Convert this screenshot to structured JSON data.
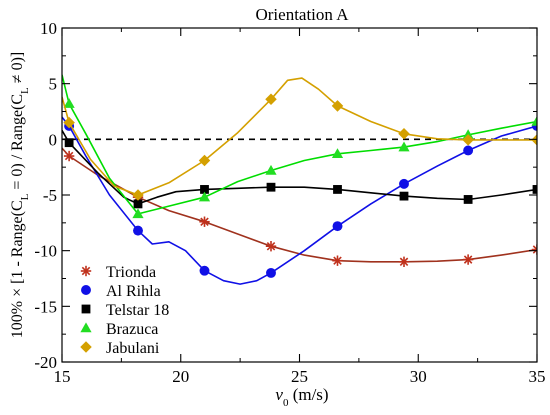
{
  "chart_data": {
    "type": "line",
    "title": "Orientation A",
    "xlabel_base": "v",
    "xlabel_sub": "0",
    "xlabel_unit": " (m/s)",
    "ylabel_lines": [
      "100% × [1 - Range(C",
      " = 0) / Range(C",
      " ≠ 0)]"
    ],
    "ylabel_subscript": "L",
    "xlim": [
      15,
      35
    ],
    "ylim": [
      -20,
      10
    ],
    "xticks": [
      "15",
      "20",
      "25",
      "30",
      "35"
    ],
    "yticks": [
      "10",
      "5",
      "0",
      "-5",
      "-10",
      "-15",
      "-20"
    ],
    "legend_position": "lower-left",
    "reference_line": {
      "y": 0,
      "style": "dashed"
    },
    "series": [
      {
        "name": "Trionda",
        "color": "#a0321e",
        "marker": "asterisk",
        "marker_color": "#c0311c",
        "points": [
          [
            15.3,
            -1.5
          ],
          [
            18.2,
            -5.2
          ],
          [
            21.0,
            -7.4
          ],
          [
            23.8,
            -9.6
          ],
          [
            26.6,
            -10.9
          ],
          [
            29.4,
            -11.0
          ],
          [
            32.1,
            -10.8
          ],
          [
            35.0,
            -9.9
          ]
        ],
        "curve": [
          [
            15.0,
            -0.8
          ],
          [
            15.3,
            -1.5
          ],
          [
            16.5,
            -3.2
          ],
          [
            18.2,
            -5.2
          ],
          [
            19.5,
            -6.4
          ],
          [
            21.0,
            -7.4
          ],
          [
            22.4,
            -8.5
          ],
          [
            23.8,
            -9.6
          ],
          [
            25.2,
            -10.4
          ],
          [
            26.6,
            -10.9
          ],
          [
            28.0,
            -11.0
          ],
          [
            29.4,
            -11.0
          ],
          [
            30.8,
            -10.95
          ],
          [
            32.1,
            -10.8
          ],
          [
            33.5,
            -10.4
          ],
          [
            35.0,
            -9.9
          ]
        ]
      },
      {
        "name": "Al Rihla",
        "color": "#1010e6",
        "marker": "circle",
        "marker_color": "#1010e6",
        "points": [
          [
            15.3,
            1.2
          ],
          [
            18.2,
            -8.2
          ],
          [
            21.0,
            -11.8
          ],
          [
            23.8,
            -12.0
          ],
          [
            26.6,
            -7.8
          ],
          [
            29.4,
            -4.0
          ],
          [
            32.1,
            -1.0
          ],
          [
            35.0,
            1.2
          ]
        ],
        "curve": [
          [
            15.0,
            2.0
          ],
          [
            15.3,
            1.2
          ],
          [
            16.0,
            -1.5
          ],
          [
            17.0,
            -5.0
          ],
          [
            18.2,
            -8.2
          ],
          [
            18.8,
            -9.4
          ],
          [
            19.5,
            -9.2
          ],
          [
            20.2,
            -10.0
          ],
          [
            21.0,
            -11.8
          ],
          [
            21.8,
            -12.7
          ],
          [
            22.5,
            -13.0
          ],
          [
            23.2,
            -12.7
          ],
          [
            23.8,
            -12.0
          ],
          [
            25.2,
            -10.0
          ],
          [
            26.6,
            -7.8
          ],
          [
            28.0,
            -5.8
          ],
          [
            29.4,
            -4.0
          ],
          [
            30.8,
            -2.4
          ],
          [
            32.1,
            -1.0
          ],
          [
            33.5,
            0.3
          ],
          [
            35.0,
            1.2
          ]
        ]
      },
      {
        "name": "Telstar 18",
        "color": "#000000",
        "marker": "square",
        "marker_color": "#000000",
        "points": [
          [
            15.3,
            -0.3
          ],
          [
            18.2,
            -5.8
          ],
          [
            21.0,
            -4.5
          ],
          [
            23.8,
            -4.3
          ],
          [
            26.6,
            -4.5
          ],
          [
            29.4,
            -5.1
          ],
          [
            32.1,
            -5.4
          ],
          [
            35.0,
            -4.5
          ]
        ],
        "curve": [
          [
            15.0,
            0.8
          ],
          [
            15.3,
            -0.3
          ],
          [
            16.5,
            -3.0
          ],
          [
            17.6,
            -5.2
          ],
          [
            18.2,
            -5.8
          ],
          [
            19.0,
            -5.2
          ],
          [
            19.8,
            -4.7
          ],
          [
            21.0,
            -4.5
          ],
          [
            22.4,
            -4.4
          ],
          [
            23.8,
            -4.3
          ],
          [
            25.2,
            -4.3
          ],
          [
            26.6,
            -4.5
          ],
          [
            28.0,
            -4.8
          ],
          [
            29.4,
            -5.1
          ],
          [
            30.8,
            -5.3
          ],
          [
            32.1,
            -5.4
          ],
          [
            33.5,
            -5.0
          ],
          [
            35.0,
            -4.5
          ]
        ]
      },
      {
        "name": "Brazuca",
        "color": "#00dd00",
        "marker": "triangle",
        "marker_color": "#22dd22",
        "points": [
          [
            15.3,
            3.2
          ],
          [
            18.2,
            -6.7
          ],
          [
            21.0,
            -5.2
          ],
          [
            23.8,
            -2.8
          ],
          [
            26.6,
            -1.3
          ],
          [
            29.4,
            -0.7
          ],
          [
            32.1,
            0.4
          ],
          [
            35.0,
            1.6
          ]
        ],
        "curve": [
          [
            15.0,
            5.8
          ],
          [
            15.3,
            3.2
          ],
          [
            16.0,
            0.5
          ],
          [
            17.0,
            -3.5
          ],
          [
            18.2,
            -6.7
          ],
          [
            19.5,
            -6.0
          ],
          [
            21.0,
            -5.2
          ],
          [
            22.4,
            -3.8
          ],
          [
            23.8,
            -2.8
          ],
          [
            25.2,
            -1.9
          ],
          [
            26.6,
            -1.3
          ],
          [
            28.0,
            -1.0
          ],
          [
            29.4,
            -0.7
          ],
          [
            30.8,
            -0.2
          ],
          [
            32.1,
            0.4
          ],
          [
            33.5,
            1.0
          ],
          [
            35.0,
            1.6
          ]
        ]
      },
      {
        "name": "Jabulani",
        "color": "#d4a000",
        "marker": "diamond",
        "marker_color": "#d4a000",
        "points": [
          [
            15.3,
            1.5
          ],
          [
            18.2,
            -5.0
          ],
          [
            21.0,
            -1.9
          ],
          [
            23.8,
            3.6
          ],
          [
            26.6,
            3.0
          ],
          [
            29.4,
            0.5
          ],
          [
            32.1,
            -0.05
          ],
          [
            35.0,
            -0.05
          ]
        ],
        "curve": [
          [
            15.0,
            3.8
          ],
          [
            15.3,
            1.5
          ],
          [
            16.2,
            -1.8
          ],
          [
            17.2,
            -4.2
          ],
          [
            18.2,
            -5.0
          ],
          [
            19.5,
            -3.9
          ],
          [
            21.0,
            -1.9
          ],
          [
            22.4,
            0.6
          ],
          [
            23.8,
            3.6
          ],
          [
            24.5,
            5.3
          ],
          [
            25.1,
            5.5
          ],
          [
            25.8,
            4.5
          ],
          [
            26.6,
            3.0
          ],
          [
            28.0,
            1.6
          ],
          [
            29.4,
            0.5
          ],
          [
            30.8,
            0.05
          ],
          [
            32.1,
            -0.05
          ],
          [
            33.5,
            -0.05
          ],
          [
            35.0,
            -0.05
          ]
        ]
      }
    ]
  }
}
